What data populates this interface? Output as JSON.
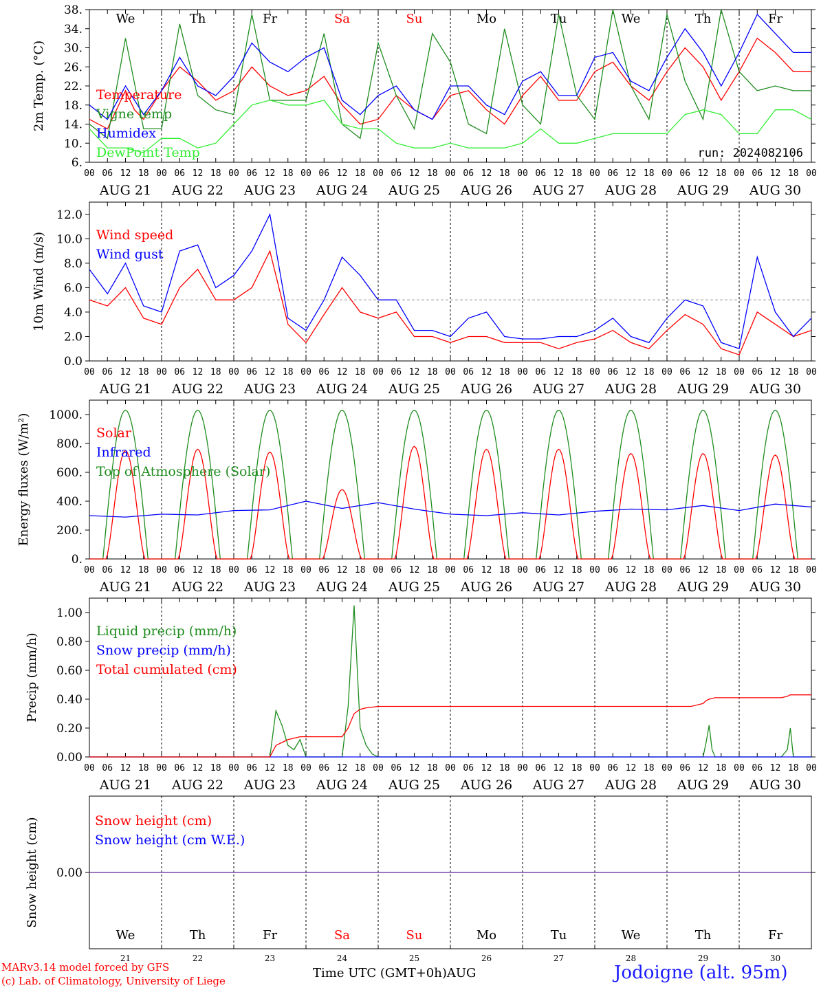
{
  "run_label": "run: 2024082106",
  "x_axis": {
    "hour_ticks": [
      "00",
      "06",
      "12",
      "18"
    ],
    "end_tick": "00",
    "day_labels": [
      "AUG 21",
      "AUG 22",
      "AUG 23",
      "AUG 24",
      "AUG 25",
      "AUG 26",
      "AUG 27",
      "AUG 28",
      "AUG 29",
      "AUG 30"
    ],
    "weekdays": [
      {
        "label": "We",
        "color": "#000000"
      },
      {
        "label": "Th",
        "color": "#000000"
      },
      {
        "label": "Fr",
        "color": "#000000"
      },
      {
        "label": "Sa",
        "color": "#ff0000"
      },
      {
        "label": "Su",
        "color": "#ff0000"
      },
      {
        "label": "Mo",
        "color": "#000000"
      },
      {
        "label": "Tu",
        "color": "#000000"
      },
      {
        "label": "We",
        "color": "#000000"
      },
      {
        "label": "Th",
        "color": "#000000"
      },
      {
        "label": "Fr",
        "color": "#000000"
      }
    ],
    "day_numbers": [
      "21",
      "22",
      "23",
      "24",
      "25",
      "26",
      "27",
      "28",
      "29",
      "30"
    ]
  },
  "footer": {
    "credit_line1": "MARv3.14 model forced by GFS",
    "credit_line2": "(c) Lab. of Climatology, University of Liege",
    "time_label": "Time UTC (GMT+0h)AUG",
    "station": "Jodoigne (alt. 95m)"
  },
  "chart_data": [
    {
      "type": "line",
      "ylabel": "2m Temp. (°C)",
      "ylim": [
        6,
        38
      ],
      "yticks": [
        "38.",
        "34.",
        "30.",
        "26.",
        "22.",
        "18.",
        "14.",
        "10.",
        "6."
      ],
      "ytick_values": [
        38,
        34,
        30,
        26,
        22,
        18,
        14,
        10,
        6
      ],
      "x_unit": "hours since AUG 21 00 UTC",
      "series": [
        {
          "name": "Temperature",
          "color": "#ff0000",
          "x": [
            0,
            6,
            12,
            15,
            18,
            24,
            30,
            36,
            42,
            48,
            54,
            60,
            66,
            72,
            78,
            84,
            90,
            96,
            102,
            108,
            114,
            120,
            126,
            132,
            138,
            144,
            150,
            156,
            162,
            168,
            174,
            180,
            186,
            192,
            198,
            204,
            210,
            216,
            222,
            228,
            234,
            240
          ],
          "values": [
            15,
            13,
            21,
            17,
            15,
            21,
            26,
            23,
            19,
            21,
            26,
            22,
            20,
            21,
            24,
            18,
            14,
            15,
            20,
            17,
            15,
            20,
            21,
            17,
            14,
            20,
            24,
            19,
            19,
            25,
            27,
            22,
            19,
            25,
            30,
            26,
            19,
            25,
            32,
            29,
            25,
            25
          ]
        },
        {
          "name": "Vigne temp",
          "color": "#1e8c1e",
          "x": [
            0,
            6,
            12,
            18,
            24,
            30,
            36,
            42,
            48,
            54,
            60,
            66,
            72,
            78,
            84,
            90,
            96,
            102,
            108,
            114,
            120,
            126,
            132,
            138,
            144,
            150,
            156,
            162,
            168,
            174,
            180,
            186,
            192,
            198,
            204,
            210,
            216,
            222,
            228,
            234,
            240
          ],
          "values": [
            14,
            11,
            32,
            13,
            13,
            35,
            20,
            17,
            16,
            37,
            19,
            19,
            19,
            33,
            14,
            11,
            31,
            20,
            13,
            33,
            27,
            14,
            12,
            34,
            18,
            14,
            37,
            20,
            15,
            38,
            22,
            15,
            37,
            23,
            15,
            38,
            25,
            21,
            22,
            21,
            21
          ]
        },
        {
          "name": "Humidex",
          "color": "#0000ff",
          "x": [
            0,
            6,
            12,
            18,
            24,
            30,
            36,
            42,
            48,
            54,
            60,
            66,
            72,
            78,
            84,
            90,
            96,
            102,
            108,
            114,
            120,
            126,
            132,
            138,
            144,
            150,
            156,
            162,
            168,
            174,
            180,
            186,
            192,
            198,
            204,
            210,
            216,
            222,
            228,
            234,
            240
          ],
          "values": [
            18,
            15,
            22,
            16,
            21,
            28,
            22,
            20,
            24,
            31,
            27,
            25,
            28,
            30,
            19,
            16,
            20,
            22,
            17,
            15,
            22,
            22,
            18,
            16,
            23,
            25,
            20,
            20,
            28,
            29,
            23,
            21,
            28,
            34,
            29,
            22,
            29,
            37,
            33,
            29,
            29
          ]
        },
        {
          "name": "DewPoint Temp",
          "color": "#33ee33",
          "x": [
            0,
            6,
            12,
            18,
            24,
            30,
            36,
            42,
            48,
            54,
            60,
            66,
            72,
            78,
            84,
            90,
            96,
            102,
            108,
            114,
            120,
            126,
            132,
            138,
            144,
            150,
            156,
            162,
            168,
            174,
            180,
            186,
            192,
            198,
            204,
            210,
            216,
            222,
            228,
            234,
            240
          ],
          "values": [
            13,
            9,
            9,
            8,
            11,
            11,
            9,
            10,
            14,
            18,
            19,
            18,
            18,
            19,
            14,
            13,
            13,
            10,
            9,
            9,
            10,
            9,
            9,
            9,
            10,
            13,
            10,
            10,
            11,
            12,
            12,
            12,
            12,
            16,
            17,
            16,
            12,
            12,
            17,
            17,
            15
          ]
        }
      ]
    },
    {
      "type": "line",
      "ylabel": "10m Wind (m/s)",
      "ylim": [
        0,
        13
      ],
      "yticks": [
        "12.0",
        "10.0",
        "8.0",
        "6.0",
        "4.0",
        "2.0",
        "0.0"
      ],
      "ytick_values": [
        12,
        10,
        8,
        6,
        4,
        2,
        0
      ],
      "reference_line": 5,
      "x_unit": "hours since AUG 21 00 UTC",
      "series": [
        {
          "name": "Wind speed",
          "color": "#ff0000",
          "x": [
            0,
            6,
            12,
            18,
            24,
            30,
            36,
            42,
            48,
            54,
            60,
            66,
            72,
            78,
            84,
            90,
            96,
            102,
            108,
            114,
            120,
            126,
            132,
            138,
            144,
            150,
            156,
            162,
            168,
            174,
            180,
            186,
            192,
            198,
            204,
            210,
            216,
            222,
            228,
            234,
            240
          ],
          "values": [
            5,
            4.5,
            6,
            3.5,
            3,
            6,
            7.5,
            5,
            5,
            6,
            9,
            3,
            1.5,
            3.8,
            6,
            4,
            3.5,
            4,
            2,
            2,
            1.5,
            2,
            2,
            1.5,
            1.5,
            1.5,
            1,
            1.5,
            1.8,
            2.5,
            1.5,
            1,
            2.5,
            3.8,
            3,
            1,
            0.5,
            4,
            3,
            2,
            2.5
          ]
        },
        {
          "name": "Wind gust",
          "color": "#0000ff",
          "x": [
            0,
            6,
            12,
            18,
            24,
            30,
            36,
            42,
            48,
            54,
            60,
            66,
            72,
            78,
            84,
            90,
            96,
            102,
            108,
            114,
            120,
            126,
            132,
            138,
            144,
            150,
            156,
            162,
            168,
            174,
            180,
            186,
            192,
            198,
            204,
            210,
            216,
            222,
            228,
            234,
            240
          ],
          "values": [
            7.5,
            5.5,
            8,
            4.5,
            4,
            9,
            9.5,
            6,
            7,
            9,
            12,
            3.5,
            2.5,
            5,
            8.5,
            7,
            5,
            5,
            2.5,
            2.5,
            2,
            3.5,
            4,
            2,
            1.8,
            1.8,
            2,
            2,
            2.5,
            3.5,
            2,
            1.5,
            3.5,
            5,
            4.5,
            1.5,
            1,
            8.5,
            4,
            2,
            3.5
          ]
        }
      ]
    },
    {
      "type": "line",
      "ylabel": "Energy fluxes (W/m²)",
      "ylim": [
        0,
        1100
      ],
      "yticks": [
        "1000.",
        "800.",
        "600.",
        "400.",
        "200.",
        "0."
      ],
      "ytick_values": [
        1000,
        800,
        600,
        400,
        200,
        0
      ],
      "x_unit": "hours since AUG 21 00 UTC",
      "series": [
        {
          "name": "Solar",
          "color": "#ff0000",
          "peaks": [
            {
              "x": 12,
              "y": 750
            },
            {
              "x": 36,
              "y": 760
            },
            {
              "x": 60,
              "y": 740
            },
            {
              "x": 84,
              "y": 480
            },
            {
              "x": 108,
              "y": 780
            },
            {
              "x": 132,
              "y": 760
            },
            {
              "x": 156,
              "y": 760
            },
            {
              "x": 180,
              "y": 730
            },
            {
              "x": 204,
              "y": 730
            },
            {
              "x": 228,
              "y": 720
            }
          ]
        },
        {
          "name": "Infrared",
          "color": "#0000ff",
          "x": [
            0,
            12,
            24,
            36,
            48,
            60,
            72,
            84,
            96,
            108,
            120,
            132,
            144,
            156,
            168,
            180,
            192,
            204,
            216,
            228,
            240
          ],
          "values": [
            300,
            290,
            310,
            305,
            335,
            340,
            400,
            350,
            390,
            345,
            310,
            300,
            320,
            305,
            330,
            345,
            340,
            370,
            335,
            380,
            360
          ]
        },
        {
          "name": "Top of Atmosphere (Solar)",
          "color": "#1e8c1e",
          "peak_value": 1030,
          "day_length_hours": 15
        }
      ]
    },
    {
      "type": "line",
      "ylabel": "Precip (mm/h)",
      "ylim": [
        0,
        1.1
      ],
      "yticks": [
        "1.00",
        "0.80",
        "0.60",
        "0.40",
        "0.20",
        "0.00"
      ],
      "ytick_values": [
        1,
        0.8,
        0.6,
        0.4,
        0.2,
        0
      ],
      "x_unit": "hours since AUG 21 00 UTC",
      "series": [
        {
          "name": "Liquid precip (mm/h)",
          "color": "#1e8c1e",
          "x": [
            0,
            60,
            62,
            64,
            66,
            68,
            70,
            72,
            74,
            84,
            86,
            88,
            90,
            92,
            94,
            96,
            120,
            204,
            205,
            206,
            207,
            208,
            230,
            232,
            233,
            234,
            240
          ],
          "values": [
            0,
            0,
            0.32,
            0.22,
            0.08,
            0.05,
            0.12,
            0,
            0,
            0,
            0.35,
            1.05,
            0.2,
            0.08,
            0.02,
            0,
            0,
            0,
            0.1,
            0.22,
            0.05,
            0,
            0,
            0.05,
            0.2,
            0,
            0
          ]
        },
        {
          "name": "Snow precip (mm/h)",
          "color": "#0000ff",
          "x": [
            0,
            240
          ],
          "values": [
            0,
            0
          ]
        },
        {
          "name": "Total cumulated (cm)",
          "color": "#ff0000",
          "x": [
            0,
            60,
            62,
            64,
            66,
            68,
            70,
            84,
            86,
            88,
            90,
            92,
            96,
            120,
            200,
            204,
            205,
            206,
            208,
            230,
            232,
            233,
            240
          ],
          "values": [
            0,
            0,
            0.08,
            0.1,
            0.12,
            0.13,
            0.14,
            0.14,
            0.2,
            0.3,
            0.33,
            0.34,
            0.35,
            0.35,
            0.35,
            0.37,
            0.39,
            0.4,
            0.41,
            0.41,
            0.42,
            0.43,
            0.43
          ]
        }
      ]
    },
    {
      "type": "line",
      "ylabel": "Snow height (cm)",
      "yticks": [
        "0.00"
      ],
      "ytick_values": [
        0
      ],
      "x_unit": "hours since AUG 21 00 UTC",
      "series": [
        {
          "name": "Snow height (cm)",
          "color": "#ff0000",
          "x": [
            0,
            240
          ],
          "values": [
            0,
            0
          ]
        },
        {
          "name": "Snow height (cm W.E.)",
          "color": "#0000ff",
          "x": [
            0,
            240
          ],
          "values": [
            0,
            0
          ]
        }
      ]
    }
  ]
}
